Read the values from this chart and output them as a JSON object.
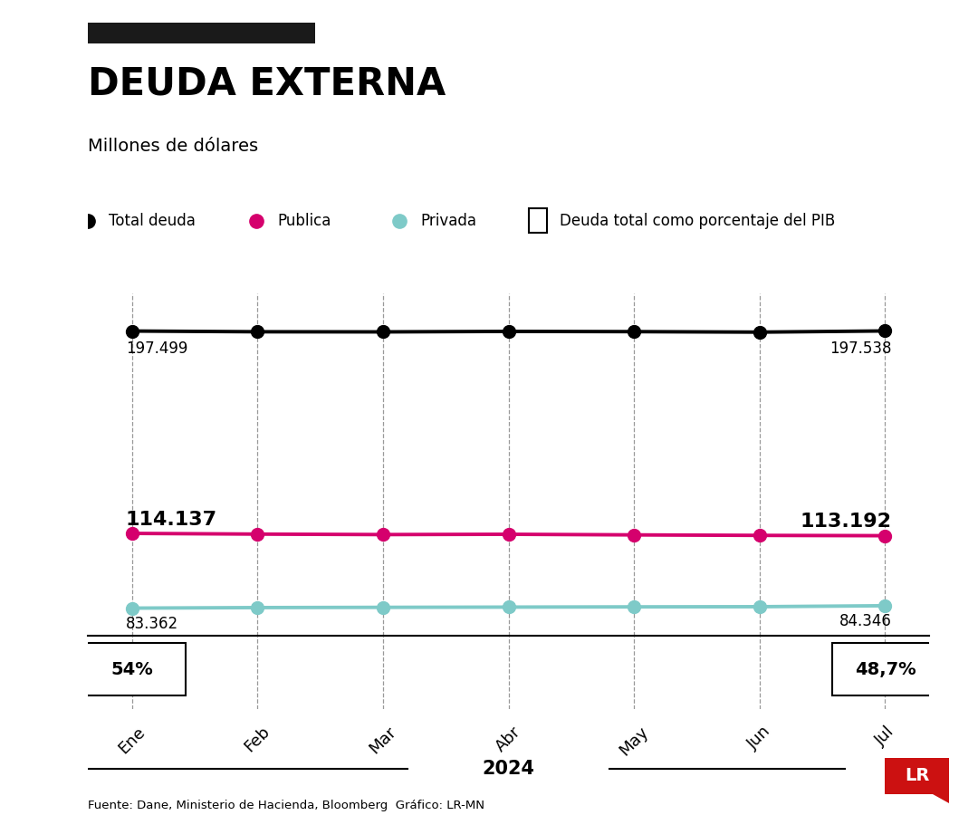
{
  "title": "DEUDA EXTERNA",
  "subtitle": "Millones de dólares",
  "months": [
    "Ene",
    "Feb",
    "Mar",
    "Abr",
    "May",
    "Jun",
    "Jul"
  ],
  "total_deuda": [
    197.499,
    197.2,
    197.15,
    197.35,
    197.25,
    197.05,
    197.538
  ],
  "publica": [
    114.137,
    113.85,
    113.65,
    113.78,
    113.52,
    113.32,
    113.192
  ],
  "privada": [
    83.362,
    83.58,
    83.68,
    83.78,
    83.88,
    83.95,
    84.346
  ],
  "color_total": "#000000",
  "color_publica": "#d5006d",
  "color_privada": "#7ecac8",
  "label_total_start": "197.499",
  "label_total_end": "197.538",
  "label_publica_start": "114.137",
  "label_publica_end": "113.192",
  "label_privada_start": "83.362",
  "label_privada_end": "84.346",
  "pct_start": "54%",
  "pct_end": "48,7%",
  "year_label": "2024",
  "legend_items": [
    "Total deuda",
    "Publica",
    "Privada",
    "Deuda total como porcentaje del PIB"
  ],
  "source": "Fuente: Dane, Ministerio de Hacienda, Bloomberg  Gráfico: LR-MN",
  "background_color": "#ffffff",
  "top_bar_color": "#1a1a1a",
  "lr_red": "#cc1111"
}
